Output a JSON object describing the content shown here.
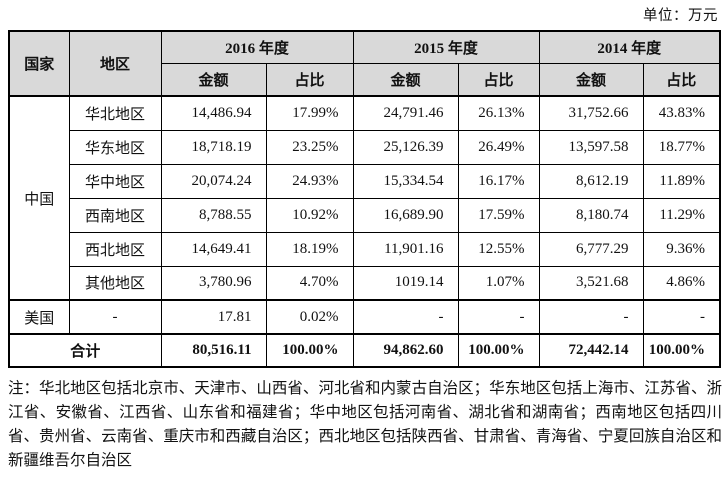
{
  "unit_label": "单位：万元",
  "colors": {
    "header_bg": "#d9d9d9",
    "border": "#000000",
    "text": "#111111"
  },
  "table": {
    "col_country": "国家",
    "col_region": "地区",
    "year_2016": "2016 年度",
    "year_2015": "2015 年度",
    "year_2014": "2014 年度",
    "col_amount": "金额",
    "col_ratio": "占比",
    "country_china": "中国",
    "country_us": "美国",
    "us_region": "-",
    "rows": [
      {
        "region": "华北地区",
        "v": [
          "14,486.94",
          "17.99%",
          "24,791.46",
          "26.13%",
          "31,752.66",
          "43.83%"
        ]
      },
      {
        "region": "华东地区",
        "v": [
          "18,718.19",
          "23.25%",
          "25,126.39",
          "26.49%",
          "13,597.58",
          "18.77%"
        ]
      },
      {
        "region": "华中地区",
        "v": [
          "20,074.24",
          "24.93%",
          "15,334.54",
          "16.17%",
          "8,612.19",
          "11.89%"
        ]
      },
      {
        "region": "西南地区",
        "v": [
          "8,788.55",
          "10.92%",
          "16,689.90",
          "17.59%",
          "8,180.74",
          "11.29%"
        ]
      },
      {
        "region": "西北地区",
        "v": [
          "14,649.41",
          "18.19%",
          "11,901.16",
          "12.55%",
          "6,777.29",
          "9.36%"
        ]
      },
      {
        "region": "其他地区",
        "v": [
          "3,780.96",
          "4.70%",
          "1019.14",
          "1.07%",
          "3,521.68",
          "4.86%"
        ]
      }
    ],
    "us_values": [
      "17.81",
      "0.02%",
      "-",
      "-",
      "-",
      "-"
    ],
    "total_label": "合计",
    "total_values": [
      "80,516.11",
      "100.00%",
      "94,862.60",
      "100.00%",
      "72,442.14",
      "100.00%"
    ]
  },
  "note": "注：华北地区包括北京市、天津市、山西省、河北省和内蒙古自治区；华东地区包括上海市、江苏省、浙江省、安徽省、江西省、山东省和福建省；华中地区包括河南省、湖北省和湖南省；西南地区包括四川省、贵州省、云南省、重庆市和西藏自治区；西北地区包括陕西省、甘肃省、青海省、宁夏回族自治区和新疆维吾尔自治区"
}
